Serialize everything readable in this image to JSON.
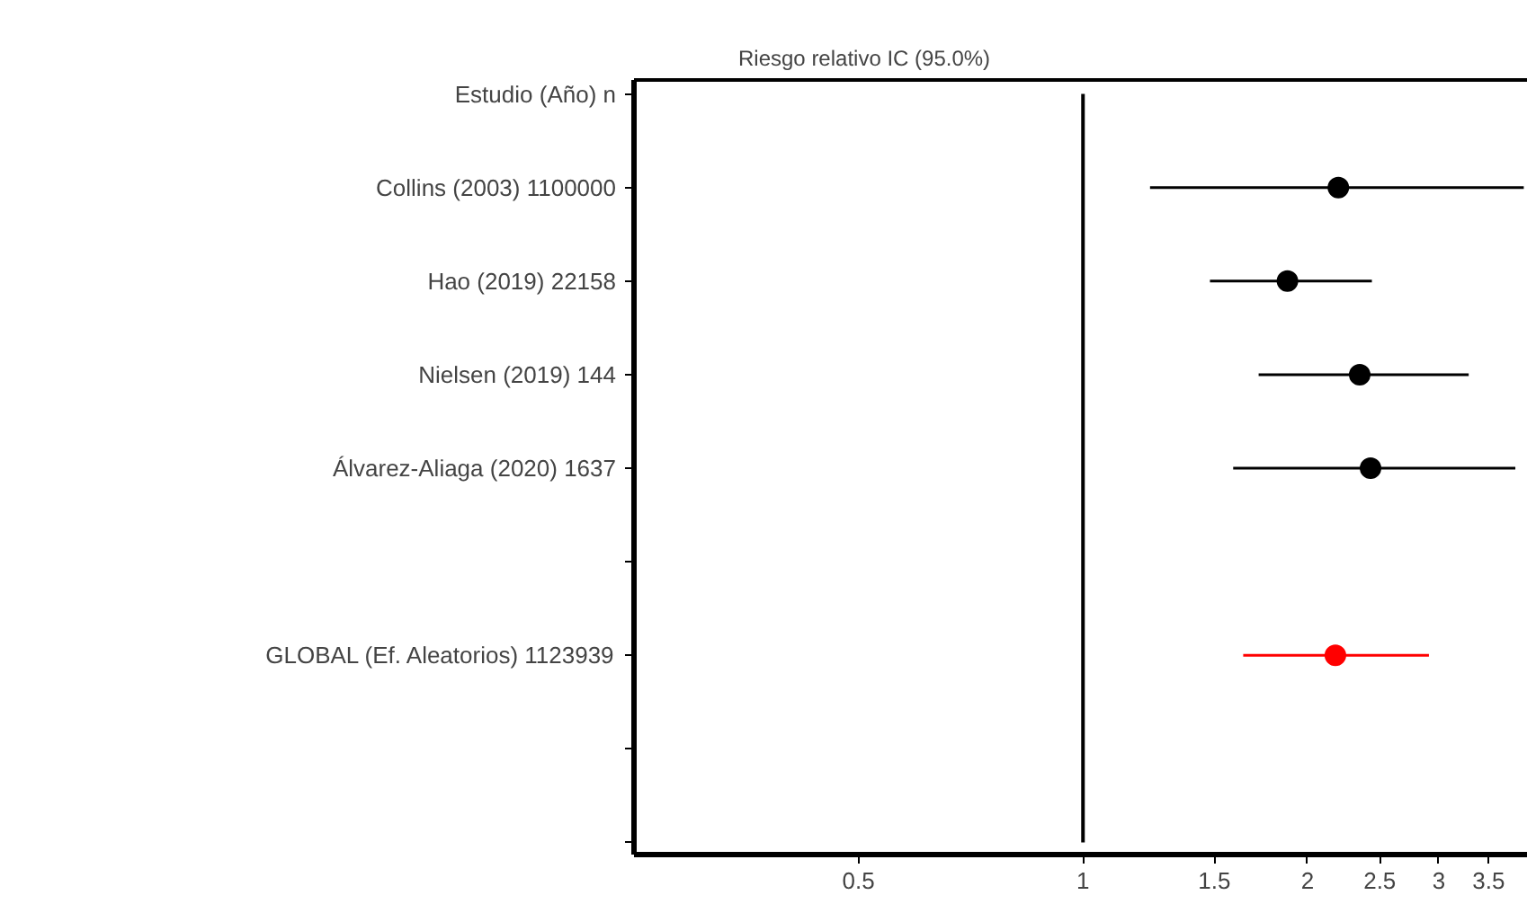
{
  "chart_data": {
    "type": "scatter",
    "orientation": "horizontal",
    "title": "Riesgo relativo IC  (95.0%)",
    "categories": [
      "Estudio (Año) n",
      "Collins (2003) 1100000",
      "Hao (2019) 22158",
      "Nielsen (2019) 144",
      "Álvarez-Aliaga (2020) 1637",
      null,
      "GLOBAL (Ef. Aleatorios) 1123939",
      null,
      null
    ],
    "values": [
      null,
      2.2,
      1.88,
      2.35,
      2.43,
      null,
      2.18,
      null,
      null
    ],
    "errors": [
      null,
      [
        1.23,
        3.9
      ],
      [
        1.48,
        2.44
      ],
      [
        1.72,
        3.29
      ],
      [
        1.59,
        3.8
      ],
      null,
      [
        1.64,
        2.91
      ],
      null,
      null
    ],
    "colors": [
      "#000000",
      "#000000",
      "#000000",
      "#000000",
      "#000000",
      "#000000",
      "#ff0000",
      "#000000",
      "#000000"
    ],
    "log": "x",
    "xlim": [
      0.25,
      3.95
    ],
    "xticks": [
      0.5,
      1,
      1.5,
      2,
      2.5,
      3,
      3.5
    ],
    "ref_lines": [
      {
        "axis": "x",
        "value": 1,
        "color": "#000000"
      }
    ],
    "marker": "circle",
    "grid": false
  }
}
